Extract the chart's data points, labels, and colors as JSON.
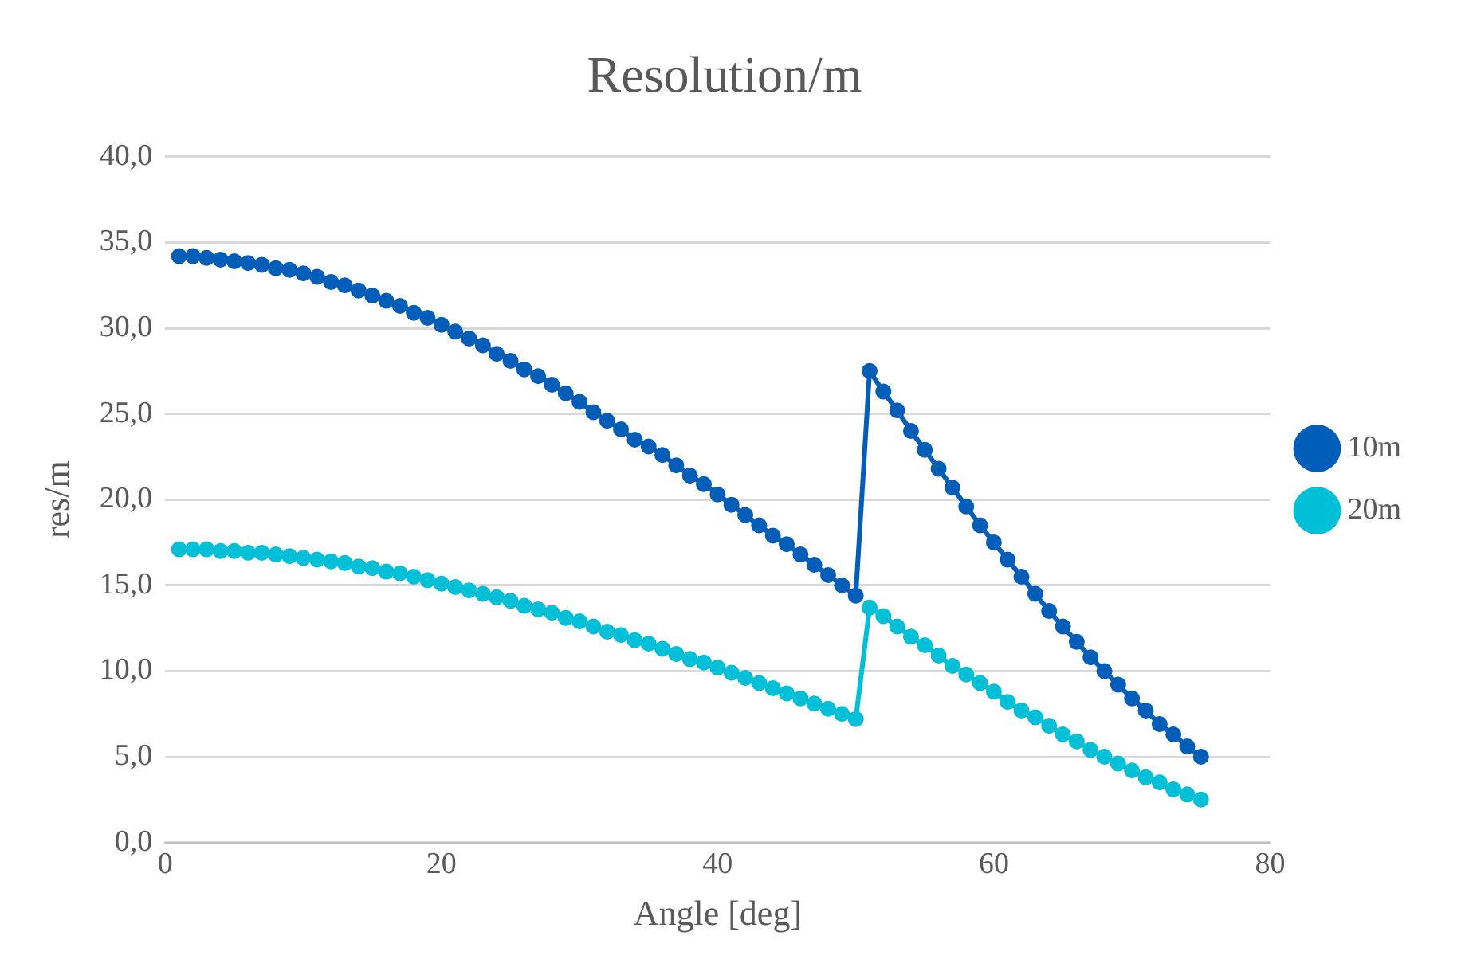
{
  "chart_data": {
    "type": "line",
    "title": "Resolution/m",
    "xlabel": "Angle [deg]",
    "ylabel": "res/m",
    "x": [
      1,
      2,
      3,
      4,
      5,
      6,
      7,
      8,
      9,
      10,
      11,
      12,
      13,
      14,
      15,
      16,
      17,
      18,
      19,
      20,
      21,
      22,
      23,
      24,
      25,
      26,
      27,
      28,
      29,
      30,
      31,
      32,
      33,
      34,
      35,
      36,
      37,
      38,
      39,
      40,
      41,
      42,
      43,
      44,
      45,
      46,
      47,
      48,
      49,
      50,
      51,
      52,
      53,
      54,
      55,
      56,
      57,
      58,
      59,
      60,
      61,
      62,
      63,
      64,
      65,
      66,
      67,
      68,
      69,
      70,
      71,
      72,
      73,
      74,
      75
    ],
    "series": [
      {
        "name": "10m",
        "color": "#005eb8",
        "values": [
          34.2,
          34.2,
          34.1,
          34.0,
          33.9,
          33.8,
          33.7,
          33.5,
          33.4,
          33.2,
          33.0,
          32.7,
          32.5,
          32.2,
          31.9,
          31.6,
          31.3,
          30.9,
          30.6,
          30.2,
          29.8,
          29.4,
          29.0,
          28.5,
          28.1,
          27.6,
          27.2,
          26.7,
          26.2,
          25.7,
          25.1,
          24.6,
          24.1,
          23.5,
          23.1,
          22.6,
          22.0,
          21.4,
          20.9,
          20.3,
          19.7,
          19.1,
          18.5,
          17.9,
          17.4,
          16.8,
          16.2,
          15.6,
          15.0,
          14.4,
          27.5,
          26.3,
          25.2,
          24.0,
          22.9,
          21.8,
          20.7,
          19.6,
          18.5,
          17.5,
          16.5,
          15.5,
          14.5,
          13.5,
          12.6,
          11.7,
          10.8,
          10.0,
          9.2,
          8.4,
          7.7,
          6.9,
          6.3,
          5.6,
          5.0
        ]
      },
      {
        "name": "20m",
        "color": "#00bfd6",
        "values": [
          17.1,
          17.1,
          17.1,
          17.0,
          17.0,
          16.9,
          16.9,
          16.8,
          16.7,
          16.6,
          16.5,
          16.4,
          16.3,
          16.1,
          16.0,
          15.8,
          15.7,
          15.5,
          15.3,
          15.1,
          14.9,
          14.7,
          14.5,
          14.3,
          14.1,
          13.8,
          13.6,
          13.4,
          13.1,
          12.9,
          12.6,
          12.3,
          12.1,
          11.8,
          11.6,
          11.3,
          11.0,
          10.7,
          10.5,
          10.2,
          9.9,
          9.6,
          9.3,
          9.0,
          8.7,
          8.4,
          8.1,
          7.8,
          7.5,
          7.2,
          13.7,
          13.2,
          12.6,
          12.0,
          11.5,
          10.9,
          10.3,
          9.8,
          9.3,
          8.8,
          8.2,
          7.7,
          7.3,
          6.8,
          6.3,
          5.9,
          5.4,
          5.0,
          4.6,
          4.2,
          3.8,
          3.5,
          3.1,
          2.8,
          2.5
        ]
      }
    ],
    "xlim": [
      0,
      80
    ],
    "xticks": [
      0,
      20,
      40,
      60,
      80
    ],
    "ylim": [
      0,
      40
    ],
    "yticks": [
      {
        "value": 0,
        "label": "0,0"
      },
      {
        "value": 5,
        "label": "5,0"
      },
      {
        "value": 10,
        "label": "10,0"
      },
      {
        "value": 15,
        "label": "15,0"
      },
      {
        "value": 20,
        "label": "20,0"
      },
      {
        "value": 25,
        "label": "25,0"
      },
      {
        "value": 30,
        "label": "30,0"
      },
      {
        "value": 35,
        "label": "35,0"
      },
      {
        "value": 40,
        "label": "40,0"
      }
    ],
    "grid": "y",
    "legend": "right",
    "marker": "circle",
    "line_style": "solid"
  }
}
